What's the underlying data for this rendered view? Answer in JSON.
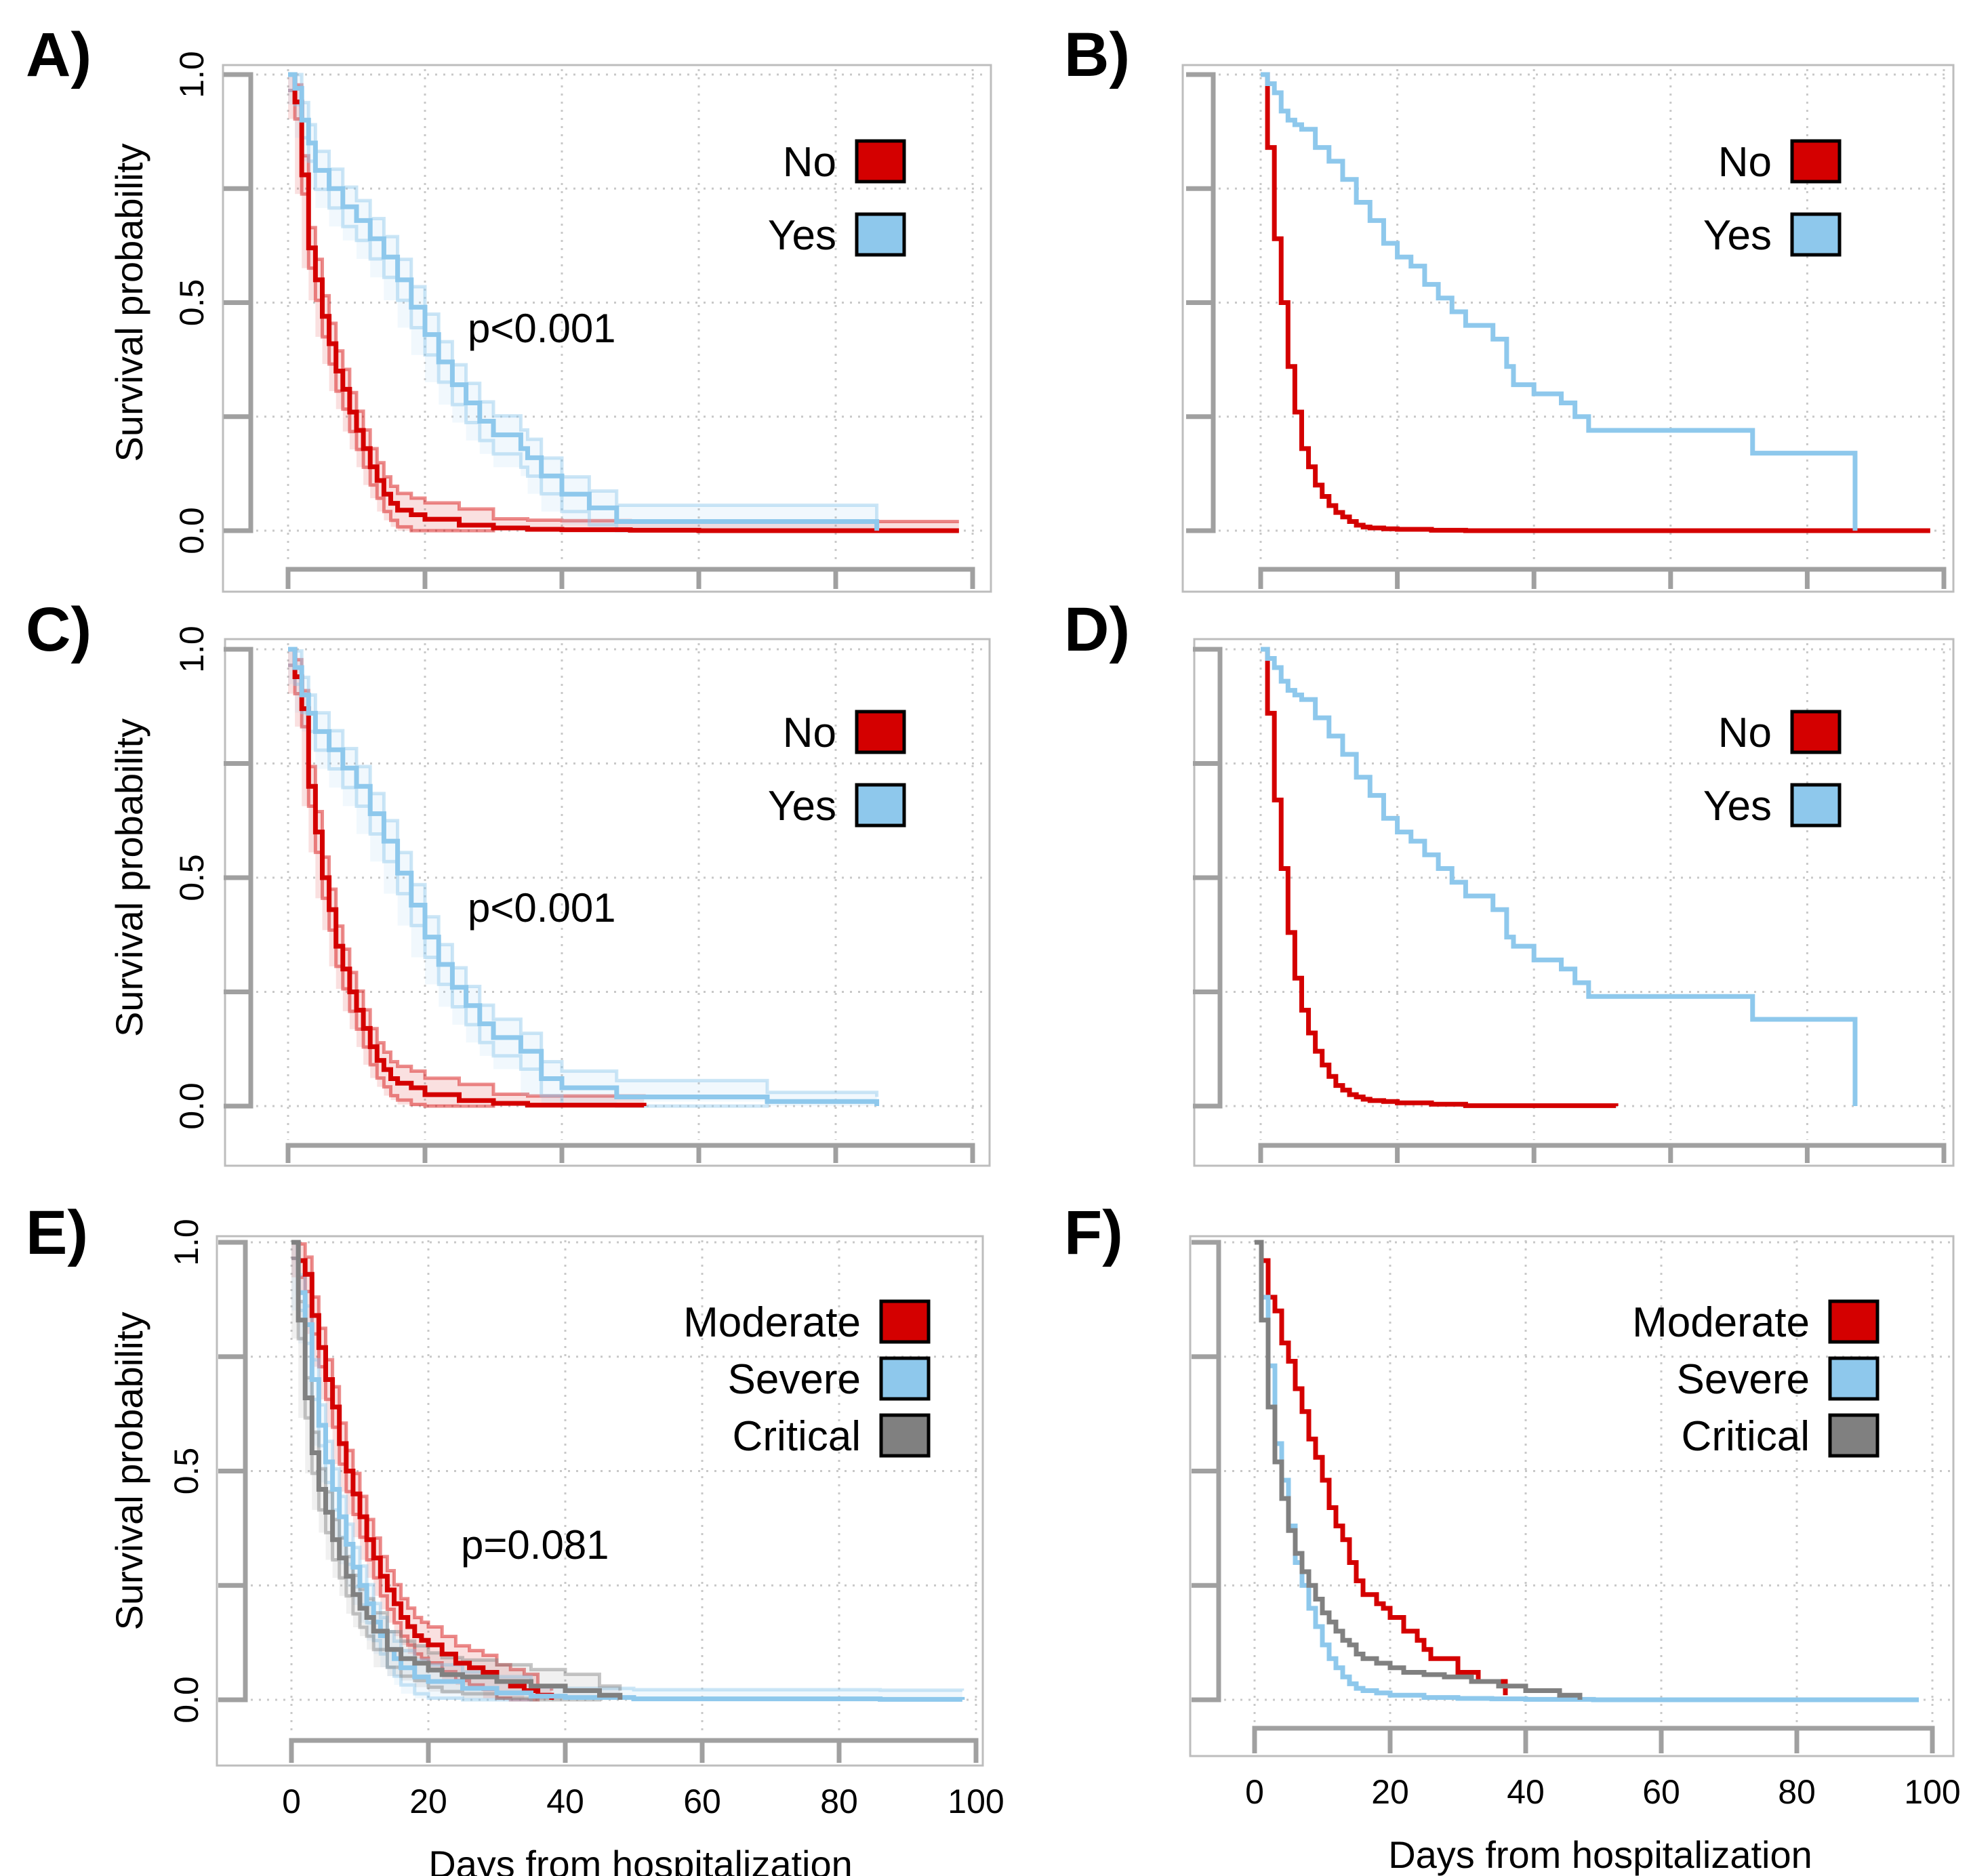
{
  "figure": {
    "panel_labels": [
      "A)",
      "B)",
      "C)",
      "D)",
      "E)",
      "F)"
    ]
  },
  "colors": {
    "No": "#d40000",
    "Yes": "#8ec8ec",
    "Moderate": "#d40000",
    "Severe": "#8ec8ec",
    "Critical": "#808080"
  },
  "chart_data": [
    {
      "panel": "A)",
      "type": "line",
      "title": "",
      "xlabel": "",
      "ylabel": "Survival probability",
      "xlim": [
        0,
        100
      ],
      "ylim": [
        0,
        1
      ],
      "xticks": [
        0,
        20,
        40,
        60,
        80,
        100
      ],
      "xtick_labels_shown": false,
      "yticks": [
        0,
        0.25,
        0.5,
        0.75,
        1.0
      ],
      "ytick_labels": [
        "0.0",
        "",
        "0.5",
        "",
        "1.0"
      ],
      "grid": true,
      "confidence_bands": true,
      "annotation": "p<0.001",
      "legend": {
        "position": "top-right",
        "entries": [
          "No",
          "Yes"
        ]
      },
      "series": [
        {
          "name": "No",
          "x": [
            0,
            1,
            2,
            3,
            4,
            5,
            6,
            7,
            8,
            9,
            10,
            11,
            12,
            13,
            14,
            15,
            16,
            18,
            20,
            25,
            30,
            35,
            40,
            50,
            60,
            98
          ],
          "y": [
            1.0,
            0.94,
            0.78,
            0.62,
            0.55,
            0.47,
            0.41,
            0.35,
            0.31,
            0.26,
            0.22,
            0.18,
            0.14,
            0.11,
            0.08,
            0.06,
            0.045,
            0.035,
            0.025,
            0.012,
            0.006,
            0.003,
            0.002,
            0.001,
            0.0,
            0.0
          ]
        },
        {
          "name": "Yes",
          "x": [
            0,
            1,
            2,
            3,
            4,
            6,
            8,
            10,
            12,
            14,
            16,
            18,
            20,
            22,
            24,
            26,
            28,
            30,
            34,
            35,
            37,
            40,
            44,
            48,
            70,
            86
          ],
          "y": [
            1.0,
            0.97,
            0.9,
            0.85,
            0.79,
            0.75,
            0.71,
            0.68,
            0.64,
            0.6,
            0.55,
            0.49,
            0.43,
            0.37,
            0.32,
            0.28,
            0.24,
            0.21,
            0.18,
            0.16,
            0.12,
            0.08,
            0.05,
            0.02,
            0.02,
            0.0
          ]
        }
      ]
    },
    {
      "panel": "B)",
      "type": "line",
      "title": "",
      "xlabel": "",
      "ylabel": "",
      "xlim": [
        0,
        100
      ],
      "ylim": [
        0,
        1
      ],
      "xticks": [
        0,
        20,
        40,
        60,
        80,
        100
      ],
      "xtick_labels_shown": false,
      "yticks": [
        0,
        0.25,
        0.5,
        0.75,
        1.0
      ],
      "ytick_labels": [
        "",
        "",
        "",
        "",
        ""
      ],
      "grid": true,
      "confidence_bands": false,
      "annotation": "",
      "legend": {
        "position": "top-right",
        "entries": [
          "No",
          "Yes"
        ]
      },
      "series": [
        {
          "name": "No",
          "x": [
            0,
            1,
            2,
            3,
            4,
            5,
            6,
            7,
            8,
            9,
            10,
            11,
            12,
            13,
            14,
            15,
            16,
            18,
            20,
            25,
            30,
            40,
            98
          ],
          "y": [
            1.0,
            0.84,
            0.64,
            0.5,
            0.36,
            0.26,
            0.18,
            0.14,
            0.1,
            0.075,
            0.055,
            0.04,
            0.03,
            0.02,
            0.012,
            0.008,
            0.006,
            0.004,
            0.003,
            0.001,
            0.0,
            0.0,
            0.0
          ]
        },
        {
          "name": "Yes",
          "x": [
            0,
            1,
            2,
            3,
            4,
            5,
            6,
            8,
            10,
            12,
            14,
            16,
            18,
            20,
            22,
            24,
            26,
            28,
            30,
            32,
            34,
            36,
            37,
            38,
            40,
            44,
            46,
            48,
            72,
            87
          ],
          "y": [
            1.0,
            0.98,
            0.96,
            0.92,
            0.9,
            0.89,
            0.88,
            0.84,
            0.81,
            0.77,
            0.72,
            0.68,
            0.63,
            0.6,
            0.58,
            0.54,
            0.51,
            0.48,
            0.45,
            0.45,
            0.42,
            0.36,
            0.32,
            0.32,
            0.3,
            0.28,
            0.25,
            0.22,
            0.17,
            0.0
          ]
        }
      ]
    },
    {
      "panel": "C)",
      "type": "line",
      "title": "",
      "xlabel": "",
      "ylabel": "Survival probability",
      "xlim": [
        0,
        100
      ],
      "ylim": [
        0,
        1
      ],
      "xticks": [
        0,
        20,
        40,
        60,
        80,
        100
      ],
      "xtick_labels_shown": false,
      "yticks": [
        0,
        0.25,
        0.5,
        0.75,
        1.0
      ],
      "ytick_labels": [
        "0.0",
        "",
        "0.5",
        "",
        "1.0"
      ],
      "grid": true,
      "confidence_bands": true,
      "annotation": "p<0.001",
      "legend": {
        "position": "top-right",
        "entries": [
          "No",
          "Yes"
        ]
      },
      "series": [
        {
          "name": "No",
          "x": [
            0,
            1,
            2,
            3,
            4,
            5,
            6,
            7,
            8,
            9,
            10,
            11,
            12,
            13,
            14,
            15,
            16,
            18,
            20,
            25,
            30,
            35,
            52
          ],
          "y": [
            1.0,
            0.94,
            0.87,
            0.7,
            0.6,
            0.5,
            0.43,
            0.35,
            0.3,
            0.25,
            0.21,
            0.17,
            0.13,
            0.1,
            0.08,
            0.06,
            0.05,
            0.04,
            0.025,
            0.012,
            0.006,
            0.002,
            0.0
          ]
        },
        {
          "name": "Yes",
          "x": [
            0,
            1,
            2,
            3,
            4,
            6,
            8,
            10,
            12,
            14,
            16,
            18,
            20,
            22,
            24,
            26,
            28,
            30,
            34,
            37,
            40,
            48,
            70,
            86
          ],
          "y": [
            1.0,
            0.96,
            0.9,
            0.86,
            0.82,
            0.78,
            0.74,
            0.7,
            0.64,
            0.58,
            0.51,
            0.44,
            0.37,
            0.31,
            0.26,
            0.22,
            0.18,
            0.15,
            0.12,
            0.06,
            0.04,
            0.02,
            0.01,
            0.0
          ]
        }
      ]
    },
    {
      "panel": "D)",
      "type": "line",
      "title": "",
      "xlabel": "",
      "ylabel": "",
      "xlim": [
        0,
        100
      ],
      "ylim": [
        0,
        1
      ],
      "xticks": [
        0,
        20,
        40,
        60,
        80,
        100
      ],
      "xtick_labels_shown": false,
      "yticks": [
        0,
        0.25,
        0.5,
        0.75,
        1.0
      ],
      "ytick_labels": [
        "",
        "",
        "",
        "",
        ""
      ],
      "grid": true,
      "confidence_bands": false,
      "annotation": "",
      "legend": {
        "position": "top-right",
        "entries": [
          "No",
          "Yes"
        ]
      },
      "series": [
        {
          "name": "No",
          "x": [
            0,
            1,
            2,
            3,
            4,
            5,
            6,
            7,
            8,
            9,
            10,
            11,
            12,
            13,
            14,
            15,
            16,
            18,
            20,
            25,
            30,
            52
          ],
          "y": [
            1.0,
            0.86,
            0.67,
            0.52,
            0.38,
            0.28,
            0.21,
            0.16,
            0.12,
            0.09,
            0.065,
            0.045,
            0.035,
            0.025,
            0.02,
            0.015,
            0.012,
            0.01,
            0.007,
            0.004,
            0.001,
            0.0
          ]
        },
        {
          "name": "Yes",
          "x": [
            0,
            1,
            2,
            3,
            4,
            5,
            6,
            8,
            10,
            12,
            14,
            16,
            18,
            20,
            22,
            24,
            26,
            28,
            30,
            32,
            34,
            36,
            37,
            38,
            40,
            44,
            46,
            48,
            72,
            87
          ],
          "y": [
            1.0,
            0.98,
            0.96,
            0.93,
            0.91,
            0.9,
            0.89,
            0.85,
            0.81,
            0.77,
            0.72,
            0.68,
            0.63,
            0.6,
            0.58,
            0.55,
            0.52,
            0.49,
            0.46,
            0.46,
            0.43,
            0.37,
            0.35,
            0.35,
            0.32,
            0.3,
            0.27,
            0.24,
            0.19,
            0.0
          ]
        }
      ]
    },
    {
      "panel": "E)",
      "type": "line",
      "title": "",
      "xlabel": "Days from hospitalization",
      "ylabel": "Survival probability",
      "xlim": [
        0,
        100
      ],
      "ylim": [
        0,
        1
      ],
      "xticks": [
        0,
        20,
        40,
        60,
        80,
        100
      ],
      "xtick_labels_shown": true,
      "xtick_labels": [
        "0",
        "20",
        "40",
        "60",
        "80",
        "100"
      ],
      "yticks": [
        0,
        0.25,
        0.5,
        0.75,
        1.0
      ],
      "ytick_labels": [
        "0.0",
        "",
        "0.5",
        "",
        "1.0"
      ],
      "grid": true,
      "confidence_bands": true,
      "annotation": "p=0.081",
      "legend": {
        "position": "top-right",
        "entries": [
          "Moderate",
          "Severe",
          "Critical"
        ]
      },
      "series": [
        {
          "name": "Moderate",
          "x": [
            0,
            1,
            2,
            3,
            4,
            5,
            6,
            7,
            8,
            9,
            10,
            11,
            12,
            13,
            14,
            15,
            16,
            17,
            18,
            19,
            20,
            22,
            24,
            26,
            28,
            30,
            32,
            34,
            36,
            38
          ],
          "y": [
            1.0,
            0.96,
            0.93,
            0.84,
            0.77,
            0.7,
            0.64,
            0.56,
            0.5,
            0.45,
            0.4,
            0.35,
            0.31,
            0.27,
            0.24,
            0.21,
            0.18,
            0.16,
            0.14,
            0.13,
            0.12,
            0.1,
            0.08,
            0.07,
            0.06,
            0.04,
            0.03,
            0.02,
            0.01,
            0.0
          ]
        },
        {
          "name": "Severe",
          "x": [
            0,
            1,
            2,
            3,
            4,
            5,
            6,
            7,
            8,
            9,
            10,
            11,
            12,
            13,
            14,
            15,
            16,
            18,
            20,
            25,
            30,
            35,
            40,
            50,
            86,
            98
          ],
          "y": [
            1.0,
            0.89,
            0.82,
            0.7,
            0.6,
            0.52,
            0.46,
            0.4,
            0.34,
            0.29,
            0.25,
            0.21,
            0.17,
            0.14,
            0.11,
            0.09,
            0.07,
            0.05,
            0.04,
            0.025,
            0.015,
            0.008,
            0.005,
            0.002,
            0.001,
            0.0
          ]
        },
        {
          "name": "Critical",
          "x": [
            0,
            1,
            2,
            3,
            4,
            5,
            6,
            7,
            8,
            9,
            10,
            11,
            12,
            14,
            16,
            18,
            20,
            22,
            25,
            30,
            35,
            40,
            45,
            48
          ],
          "y": [
            1.0,
            0.83,
            0.66,
            0.54,
            0.46,
            0.41,
            0.35,
            0.31,
            0.27,
            0.23,
            0.2,
            0.18,
            0.15,
            0.11,
            0.09,
            0.08,
            0.065,
            0.055,
            0.05,
            0.04,
            0.03,
            0.02,
            0.01,
            0.0
          ]
        }
      ]
    },
    {
      "panel": "F)",
      "type": "line",
      "title": "",
      "xlabel": "Days from hospitalization",
      "ylabel": "",
      "xlim": [
        0,
        100
      ],
      "ylim": [
        0,
        1
      ],
      "xticks": [
        0,
        20,
        40,
        60,
        80,
        100
      ],
      "xtick_labels_shown": true,
      "xtick_labels": [
        "0",
        "20",
        "40",
        "60",
        "80",
        "100"
      ],
      "yticks": [
        0,
        0.25,
        0.5,
        0.75,
        1.0
      ],
      "ytick_labels": [
        "",
        "",
        "",
        "",
        ""
      ],
      "grid": true,
      "confidence_bands": false,
      "annotation": "",
      "legend": {
        "position": "top-right",
        "entries": [
          "Moderate",
          "Severe",
          "Critical"
        ]
      },
      "series": [
        {
          "name": "Moderate",
          "x": [
            0,
            1,
            2,
            3,
            4,
            5,
            6,
            7,
            8,
            9,
            10,
            11,
            12,
            13,
            14,
            15,
            16,
            18,
            19,
            20,
            22,
            24,
            25,
            26,
            29,
            30,
            33,
            37
          ],
          "y": [
            1.0,
            0.96,
            0.88,
            0.85,
            0.78,
            0.74,
            0.68,
            0.63,
            0.57,
            0.53,
            0.48,
            0.42,
            0.38,
            0.35,
            0.3,
            0.26,
            0.23,
            0.21,
            0.2,
            0.18,
            0.15,
            0.13,
            0.11,
            0.09,
            0.09,
            0.06,
            0.04,
            0.01
          ]
        },
        {
          "name": "Severe",
          "x": [
            0,
            1,
            2,
            3,
            4,
            5,
            6,
            7,
            8,
            9,
            10,
            11,
            12,
            13,
            14,
            15,
            16,
            18,
            20,
            25,
            30,
            35,
            40,
            50,
            98
          ],
          "y": [
            1.0,
            0.88,
            0.73,
            0.56,
            0.48,
            0.38,
            0.3,
            0.25,
            0.2,
            0.16,
            0.12,
            0.09,
            0.07,
            0.05,
            0.035,
            0.025,
            0.02,
            0.015,
            0.01,
            0.005,
            0.003,
            0.002,
            0.001,
            0.0,
            0.0
          ]
        },
        {
          "name": "Critical",
          "x": [
            0,
            1,
            2,
            3,
            4,
            5,
            6,
            7,
            8,
            9,
            10,
            11,
            12,
            13,
            14,
            15,
            16,
            18,
            20,
            22,
            25,
            28,
            32,
            36,
            40,
            45,
            48
          ],
          "y": [
            1.0,
            0.83,
            0.64,
            0.52,
            0.44,
            0.37,
            0.32,
            0.28,
            0.25,
            0.22,
            0.19,
            0.17,
            0.15,
            0.13,
            0.12,
            0.1,
            0.09,
            0.08,
            0.07,
            0.06,
            0.055,
            0.05,
            0.04,
            0.03,
            0.02,
            0.01,
            0.0
          ]
        }
      ]
    }
  ]
}
